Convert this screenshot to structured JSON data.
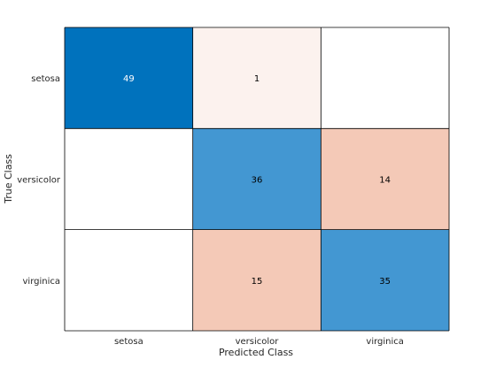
{
  "chart_data": {
    "type": "heatmap",
    "xlabel": "Predicted Class",
    "ylabel": "True Class",
    "x_categories": [
      "setosa",
      "versicolor",
      "virginica"
    ],
    "y_categories": [
      "setosa",
      "versicolor",
      "virginica"
    ],
    "values": [
      [
        49,
        1,
        0
      ],
      [
        0,
        36,
        14
      ],
      [
        0,
        15,
        35
      ]
    ],
    "colors": {
      "correct_strong": "#0072bd",
      "correct": "#4397d2",
      "error": "#f4c9b7",
      "error_light": "#fcf2ee",
      "empty": "#ffffff",
      "dark_text": "#000000",
      "light_text": "#ffffff",
      "border": "#000000"
    }
  }
}
